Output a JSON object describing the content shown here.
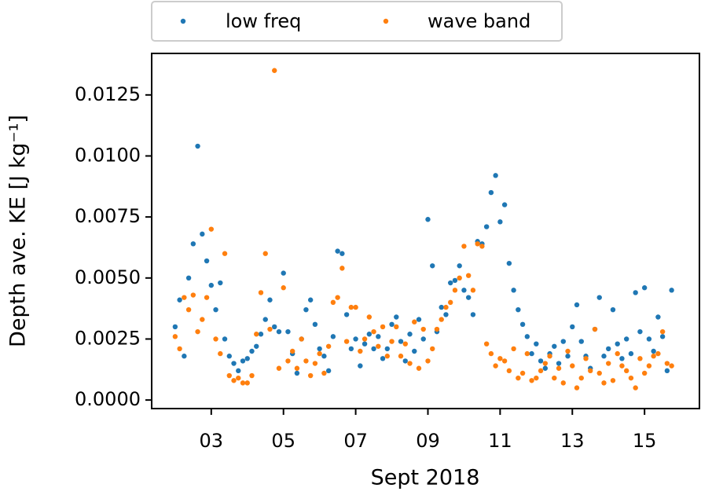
{
  "chart_data": {
    "type": "scatter",
    "xlabel": "Sept 2018",
    "ylabel": "Depth ave. KE [J kg⁻¹]",
    "x": [
      2.0,
      2.125,
      2.25,
      2.375,
      2.5,
      2.625,
      2.75,
      2.875,
      3.0,
      3.125,
      3.25,
      3.375,
      3.5,
      3.625,
      3.75,
      3.875,
      4.0,
      4.125,
      4.25,
      4.375,
      4.5,
      4.625,
      4.75,
      4.875,
      5.0,
      5.125,
      5.25,
      5.375,
      5.5,
      5.625,
      5.75,
      5.875,
      6.0,
      6.125,
      6.25,
      6.375,
      6.5,
      6.625,
      6.75,
      6.875,
      7.0,
      7.125,
      7.25,
      7.375,
      7.5,
      7.625,
      7.75,
      7.875,
      8.0,
      8.125,
      8.25,
      8.375,
      8.5,
      8.625,
      8.75,
      8.875,
      9.0,
      9.125,
      9.25,
      9.375,
      9.5,
      9.625,
      9.75,
      9.875,
      10.0,
      10.125,
      10.25,
      10.375,
      10.5,
      10.625,
      10.75,
      10.875,
      11.0,
      11.125,
      11.25,
      11.375,
      11.5,
      11.625,
      11.75,
      11.875,
      12.0,
      12.125,
      12.25,
      12.375,
      12.5,
      12.625,
      12.75,
      12.875,
      13.0,
      13.125,
      13.25,
      13.375,
      13.5,
      13.625,
      13.75,
      13.875,
      14.0,
      14.125,
      14.25,
      14.375,
      14.5,
      14.625,
      14.75,
      14.875,
      15.0,
      15.125,
      15.25,
      15.375,
      15.5,
      15.625,
      15.75
    ],
    "series": [
      {
        "name": "low freq",
        "color": "#1f77b4",
        "values": [
          0.003,
          0.0041,
          0.0018,
          0.005,
          0.0064,
          0.0104,
          0.0068,
          0.0057,
          0.0047,
          0.0037,
          0.0048,
          0.0025,
          0.0018,
          0.0015,
          0.0012,
          0.0016,
          0.0017,
          0.002,
          0.0022,
          0.0027,
          0.0033,
          0.0041,
          0.003,
          0.0028,
          0.0052,
          0.0028,
          0.0019,
          0.0011,
          0.0025,
          0.0037,
          0.0041,
          0.0031,
          0.0021,
          0.0018,
          0.0012,
          0.0026,
          0.0061,
          0.006,
          0.0035,
          0.0021,
          0.0025,
          0.0014,
          0.0023,
          0.0027,
          0.0021,
          0.0026,
          0.0017,
          0.0021,
          0.0031,
          0.0034,
          0.0024,
          0.0016,
          0.0027,
          0.002,
          0.0033,
          0.0025,
          0.0074,
          0.0055,
          0.0028,
          0.0038,
          0.0035,
          0.0048,
          0.0049,
          0.0055,
          0.0045,
          0.0042,
          0.0035,
          0.0065,
          0.0064,
          0.0071,
          0.0085,
          0.0092,
          0.0073,
          0.008,
          0.0056,
          0.0045,
          0.0037,
          0.0031,
          0.0026,
          0.0019,
          0.0023,
          0.0016,
          0.0013,
          0.0019,
          0.0022,
          0.0015,
          0.0024,
          0.0018,
          0.003,
          0.0039,
          0.0024,
          0.0018,
          0.0013,
          0.0029,
          0.0042,
          0.0018,
          0.0021,
          0.0037,
          0.0023,
          0.0017,
          0.0025,
          0.0019,
          0.0044,
          0.0028,
          0.0046,
          0.0025,
          0.002,
          0.0034,
          0.0026,
          0.0012,
          0.0045
        ]
      },
      {
        "name": "wave band",
        "color": "#ff7f0e",
        "values": [
          0.0026,
          0.0021,
          0.0042,
          0.0037,
          0.0043,
          0.0028,
          0.0033,
          0.0042,
          0.007,
          0.0025,
          0.0019,
          0.006,
          0.001,
          0.0008,
          0.0009,
          0.0007,
          0.0007,
          0.001,
          0.0027,
          0.0044,
          0.006,
          0.0029,
          0.0135,
          0.0013,
          0.0046,
          0.0016,
          0.002,
          0.0013,
          0.0025,
          0.0016,
          0.001,
          0.0015,
          0.0019,
          0.0011,
          0.0022,
          0.004,
          0.0042,
          0.0054,
          0.0024,
          0.0038,
          0.0038,
          0.002,
          0.0025,
          0.0034,
          0.0028,
          0.0022,
          0.003,
          0.0018,
          0.0024,
          0.003,
          0.0018,
          0.0023,
          0.0015,
          0.0032,
          0.0013,
          0.0029,
          0.0016,
          0.0021,
          0.0029,
          0.0033,
          0.0038,
          0.004,
          0.0045,
          0.005,
          0.0063,
          0.0051,
          0.0045,
          0.0064,
          0.0063,
          0.0023,
          0.0019,
          0.0014,
          0.0017,
          0.0016,
          0.0012,
          0.0021,
          0.0009,
          0.0011,
          0.0019,
          0.0008,
          0.0009,
          0.0012,
          0.0015,
          0.0018,
          0.0009,
          0.0013,
          0.0007,
          0.002,
          0.0014,
          0.0005,
          0.0009,
          0.0017,
          0.0012,
          0.0029,
          0.0011,
          0.0007,
          0.0015,
          0.0008,
          0.0019,
          0.0014,
          0.0012,
          0.0009,
          0.0005,
          0.0017,
          0.0011,
          0.0014,
          0.0018,
          0.0019,
          0.0028,
          0.0015,
          0.0014
        ]
      }
    ],
    "xlim": [
      1.35,
      16.52
    ],
    "ylim": [
      -0.00035,
      0.0142
    ],
    "xticks": [
      {
        "value": 3,
        "label": "03"
      },
      {
        "value": 5,
        "label": "05"
      },
      {
        "value": 7,
        "label": "07"
      },
      {
        "value": 9,
        "label": "09"
      },
      11,
      13,
      15
    ],
    "yticks": [
      {
        "value": 0,
        "label": "0.0000"
      },
      0.0025,
      {
        "value": 0.005,
        "label": "0.0050"
      },
      0.0075,
      {
        "value": 0.01,
        "label": "0.0100"
      },
      0.0125
    ],
    "legend": "top"
  }
}
